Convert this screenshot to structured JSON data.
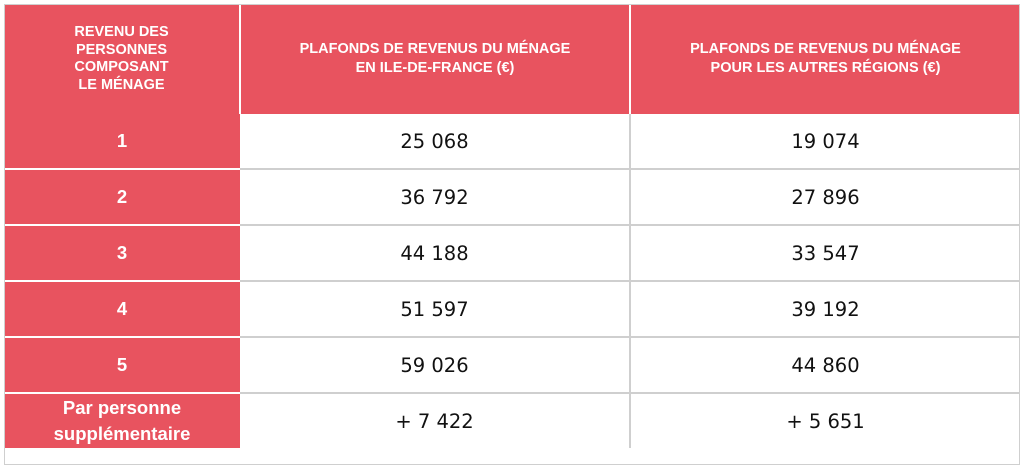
{
  "table": {
    "headers": [
      "REVENU DES\nPERSONNES\nCOMPOSANT\nLE MÉNAGE",
      "PLAFONDS DE REVENUS DU MÉNAGE\nEN ILE-DE-FRANCE (€)",
      "PLAFONDS DE REVENUS DU MÉNAGE\nPOUR LES AUTRES RÉGIONS (€)"
    ],
    "rows": [
      {
        "label": "1",
        "idf": "25 068",
        "autres": "19 074"
      },
      {
        "label": "2",
        "idf": "36 792",
        "autres": "27 896"
      },
      {
        "label": "3",
        "idf": "44 188",
        "autres": "33 547"
      },
      {
        "label": "4",
        "idf": "51 597",
        "autres": "39 192"
      },
      {
        "label": "5",
        "idf": "59 026",
        "autres": "44 860"
      },
      {
        "label": "Par personne\nsupplémentaire",
        "idf": "+ 7 422",
        "autres": "+ 5 651"
      }
    ]
  },
  "colors": {
    "accent": "#e8535f",
    "grid": "#cfcfcf",
    "text": "#111111"
  }
}
